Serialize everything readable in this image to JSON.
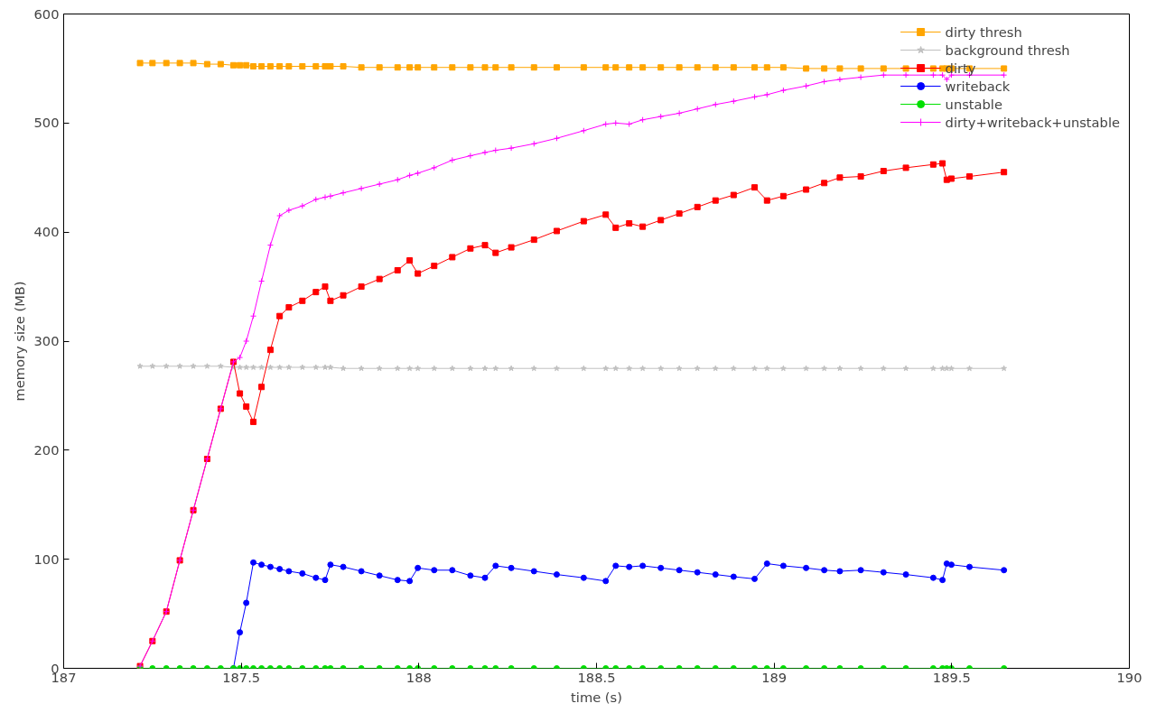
{
  "chart_data": {
    "type": "line",
    "xlabel": "time (s)",
    "ylabel": "memory size (MB)",
    "xlim": [
      187,
      190
    ],
    "xticks": [
      187,
      187.5,
      188,
      188.5,
      189,
      189.5,
      190
    ],
    "ylim": [
      0,
      600
    ],
    "yticks": [
      0,
      100,
      200,
      300,
      400,
      500,
      600
    ],
    "grid": false,
    "legend": "top right",
    "x": [
      187.215,
      187.25,
      187.289,
      187.327,
      187.365,
      187.404,
      187.442,
      187.478,
      187.496,
      187.514,
      187.534,
      187.557,
      187.582,
      187.608,
      187.634,
      187.672,
      187.71,
      187.736,
      187.751,
      187.787,
      187.838,
      187.889,
      187.94,
      187.974,
      187.997,
      188.043,
      188.094,
      188.145,
      188.186,
      188.216,
      188.26,
      188.324,
      188.388,
      188.464,
      188.526,
      188.554,
      188.592,
      188.63,
      188.681,
      188.733,
      188.784,
      188.835,
      188.886,
      188.945,
      188.98,
      189.026,
      189.09,
      189.141,
      189.185,
      189.244,
      189.308,
      189.371,
      189.448,
      189.474,
      189.486,
      189.499,
      189.55,
      189.647
    ],
    "series": [
      {
        "name": "dirty thresh",
        "color": "#ffa500",
        "marker": "square",
        "values": [
          555,
          555,
          555,
          555,
          555,
          554,
          554,
          553,
          553,
          553,
          552,
          552,
          552,
          552,
          552,
          552,
          552,
          552,
          552,
          552,
          551,
          551,
          551,
          551,
          551,
          551,
          551,
          551,
          551,
          551,
          551,
          551,
          551,
          551,
          551,
          551,
          551,
          551,
          551,
          551,
          551,
          551,
          551,
          551,
          551,
          551,
          550,
          550,
          550,
          550,
          550,
          550,
          550,
          550,
          550,
          550,
          550,
          550
        ]
      },
      {
        "name": "background thresh",
        "color": "#c0c0c0",
        "marker": "star",
        "values": [
          277,
          277,
          277,
          277,
          277,
          277,
          277,
          276,
          276,
          276,
          276,
          276,
          276,
          276,
          276,
          276,
          276,
          276,
          276,
          275,
          275,
          275,
          275,
          275,
          275,
          275,
          275,
          275,
          275,
          275,
          275,
          275,
          275,
          275,
          275,
          275,
          275,
          275,
          275,
          275,
          275,
          275,
          275,
          275,
          275,
          275,
          275,
          275,
          275,
          275,
          275,
          275,
          275,
          275,
          275,
          275,
          275,
          275
        ]
      },
      {
        "name": "dirty",
        "color": "#ff0000",
        "marker": "square",
        "values": [
          2,
          25,
          52,
          99,
          145,
          192,
          238,
          281,
          252,
          240,
          226,
          258,
          292,
          323,
          331,
          337,
          345,
          350,
          337,
          342,
          350,
          357,
          365,
          374,
          362,
          369,
          377,
          385,
          388,
          381,
          386,
          393,
          401,
          410,
          416,
          404,
          408,
          405,
          411,
          417,
          423,
          429,
          434,
          441,
          429,
          433,
          439,
          445,
          450,
          451,
          456,
          459,
          462,
          463,
          448,
          449,
          451,
          455
        ]
      },
      {
        "name": "writeback",
        "color": "#0000ff",
        "marker": "circle",
        "values": [
          null,
          null,
          null,
          null,
          null,
          null,
          null,
          0,
          33,
          60,
          97,
          95,
          93,
          91,
          89,
          87,
          83,
          81,
          95,
          93,
          89,
          85,
          81,
          80,
          92,
          90,
          90,
          85,
          83,
          94,
          92,
          89,
          86,
          83,
          80,
          94,
          93,
          94,
          92,
          90,
          88,
          86,
          84,
          82,
          96,
          94,
          92,
          90,
          89,
          90,
          88,
          86,
          83,
          81,
          96,
          95,
          93,
          90
        ]
      },
      {
        "name": "unstable",
        "color": "#00e000",
        "marker": "circle",
        "values": [
          0,
          0,
          0,
          0,
          0,
          0,
          0,
          0,
          0,
          0,
          0,
          0,
          0,
          0,
          0,
          0,
          0,
          0,
          0,
          0,
          0,
          0,
          0,
          0,
          0,
          0,
          0,
          0,
          0,
          0,
          0,
          0,
          0,
          0,
          0,
          0,
          0,
          0,
          0,
          0,
          0,
          0,
          0,
          0,
          0,
          0,
          0,
          0,
          0,
          0,
          0,
          0,
          0,
          0,
          0,
          0,
          0,
          0
        ]
      },
      {
        "name": "dirty+writeback+unstable",
        "color": "#ff00ff",
        "marker": "cross",
        "values": [
          2,
          25,
          52,
          99,
          145,
          192,
          238,
          281,
          285,
          300,
          323,
          355,
          388,
          415,
          420,
          424,
          430,
          432,
          433,
          436,
          440,
          444,
          448,
          452,
          454,
          459,
          466,
          470,
          473,
          475,
          477,
          481,
          486,
          493,
          499,
          500,
          499,
          503,
          506,
          509,
          513,
          517,
          520,
          524,
          526,
          530,
          534,
          538,
          540,
          542,
          544,
          544,
          544,
          544,
          540,
          544,
          544,
          544
        ]
      }
    ]
  }
}
